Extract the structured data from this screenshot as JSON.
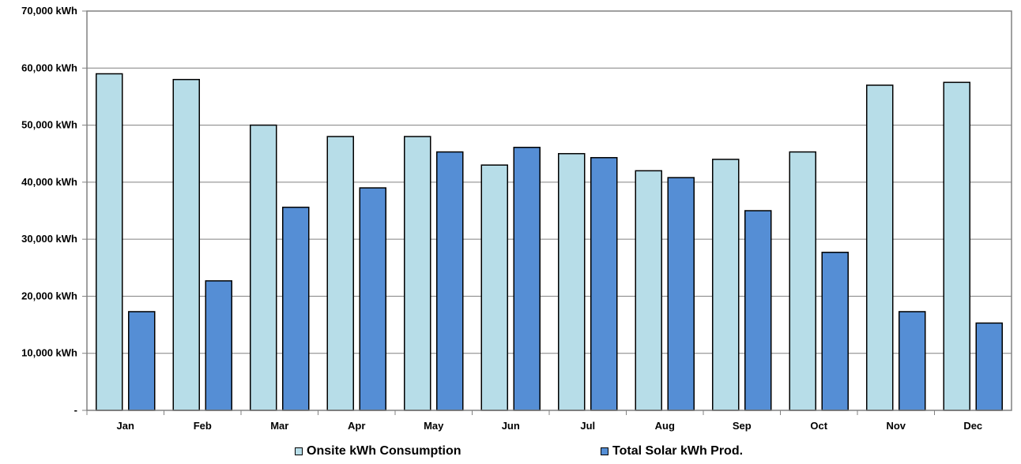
{
  "chart_data": {
    "type": "bar",
    "title": "",
    "xlabel": "",
    "ylabel": "",
    "ylim": [
      0,
      70000
    ],
    "y_ticks": [
      0,
      10000,
      20000,
      30000,
      40000,
      50000,
      60000,
      70000
    ],
    "y_tick_labels": [
      "-",
      "10,000 kWh",
      "20,000 kWh",
      "30,000 kWh",
      "40,000 kWh",
      "50,000 kWh",
      "60,000 kWh",
      "70,000 kWh"
    ],
    "grid": true,
    "legend_position": "bottom",
    "categories": [
      "Jan",
      "Feb",
      "Mar",
      "Apr",
      "May",
      "Jun",
      "Jul",
      "Aug",
      "Sep",
      "Oct",
      "Nov",
      "Dec"
    ],
    "series": [
      {
        "name": "Onsite kWh Consumption",
        "color": "#b7dde8",
        "values": [
          59000,
          58000,
          50000,
          48000,
          48000,
          43000,
          45000,
          42000,
          44000,
          45300,
          57000,
          57500
        ]
      },
      {
        "name": "Total Solar kWh Prod.",
        "color": "#558ed5",
        "values": [
          17300,
          22700,
          35600,
          39000,
          45300,
          46100,
          44300,
          40800,
          35000,
          27700,
          17300,
          15300
        ]
      }
    ]
  }
}
